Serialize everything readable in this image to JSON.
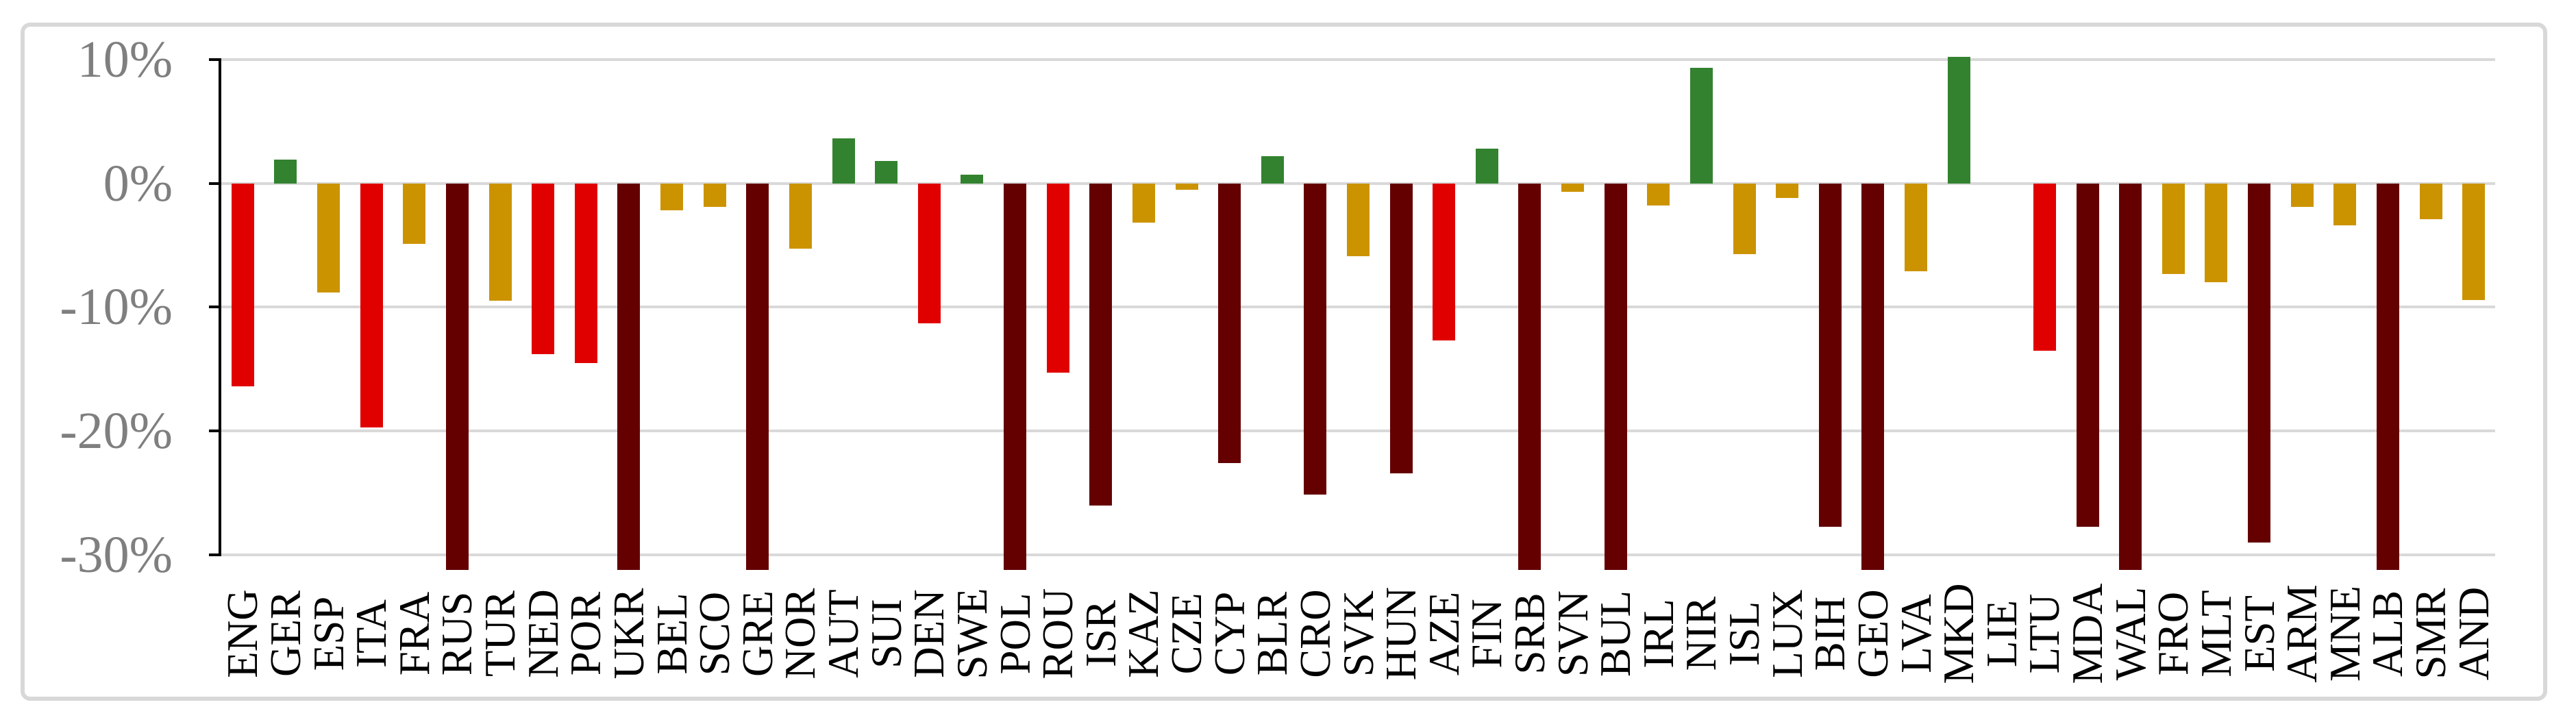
{
  "chart_data": {
    "type": "bar",
    "title": "",
    "xlabel": "",
    "ylabel": "",
    "legend": false,
    "grid": true,
    "x_label_rotation": -90,
    "ylim": [
      -31.2,
      12.3
    ],
    "y_ticks": {
      "labels": [
        "10%",
        "0%",
        "-10%",
        "-20%",
        "-30%"
      ],
      "values": [
        10,
        0,
        -10,
        -20,
        -30
      ]
    },
    "categories": [
      "ENG",
      "GER",
      "ESP",
      "ITA",
      "FRA",
      "RUS",
      "TUR",
      "NED",
      "POR",
      "UKR",
      "BEL",
      "SCO",
      "GRE",
      "NOR",
      "AUT",
      "SUI",
      "DEN",
      "SWE",
      "POL",
      "ROU",
      "ISR",
      "KAZ",
      "CZE",
      "CYP",
      "BLR",
      "CRO",
      "SVK",
      "HUN",
      "AZE",
      "FIN",
      "SRB",
      "SVN",
      "BUL",
      "IRL",
      "NIR",
      "ISL",
      "LUX",
      "BIH",
      "GEO",
      "LVA",
      "MKD",
      "LIE",
      "LTU",
      "MDA",
      "WAL",
      "FRO",
      "MLT",
      "EST",
      "ARM",
      "MNE",
      "ALB",
      "SMR",
      "AND"
    ],
    "values": [
      -16.4,
      1.9,
      -8.8,
      -19.7,
      -4.9,
      -31.2,
      -9.5,
      -13.8,
      -14.5,
      -31.2,
      -2.2,
      -1.9,
      -31.2,
      -5.3,
      3.6,
      1.8,
      -11.3,
      0.7,
      -31.2,
      -15.3,
      -26.0,
      -3.2,
      -0.5,
      -22.6,
      2.2,
      -25.1,
      -5.9,
      -23.4,
      -12.7,
      2.8,
      -31.2,
      -0.7,
      -31.2,
      -1.8,
      9.3,
      -5.7,
      -1.2,
      -27.7,
      -31.2,
      -7.1,
      10.2,
      0,
      -13.5,
      -27.7,
      -31.2,
      -7.3,
      -8.0,
      -29.0,
      -1.9,
      -3.4,
      -31.2,
      -2.9,
      -9.4
    ],
    "bar_color_keys": [
      "red",
      "green",
      "gold",
      "red",
      "gold",
      "darkred",
      "gold",
      "red",
      "red",
      "darkred",
      "gold",
      "gold",
      "darkred",
      "gold",
      "green",
      "green",
      "red",
      "green",
      "darkred",
      "red",
      "darkred",
      "gold",
      "gold",
      "darkred",
      "green",
      "darkred",
      "gold",
      "darkred",
      "red",
      "green",
      "darkred",
      "gold",
      "darkred",
      "gold",
      "green",
      "gold",
      "gold",
      "darkred",
      "darkred",
      "gold",
      "green",
      "none",
      "red",
      "darkred",
      "darkred",
      "gold",
      "gold",
      "darkred",
      "gold",
      "gold",
      "darkred",
      "gold",
      "gold"
    ],
    "clipped_categories": [
      "RUS",
      "UKR",
      "GRE",
      "POL",
      "SRB",
      "BUL",
      "GEO",
      "WAL",
      "ALB"
    ],
    "colors": {
      "red": "#E10000",
      "darkred": "#640000",
      "gold": "#CC9300",
      "green": "#338230",
      "gridline": "#D9D9D9",
      "axis": "#000000",
      "y_tick_label": "#7F7F7F",
      "x_label": "#000000",
      "chart_border": "#D8D8D8",
      "background": "#FFFFFF"
    }
  }
}
